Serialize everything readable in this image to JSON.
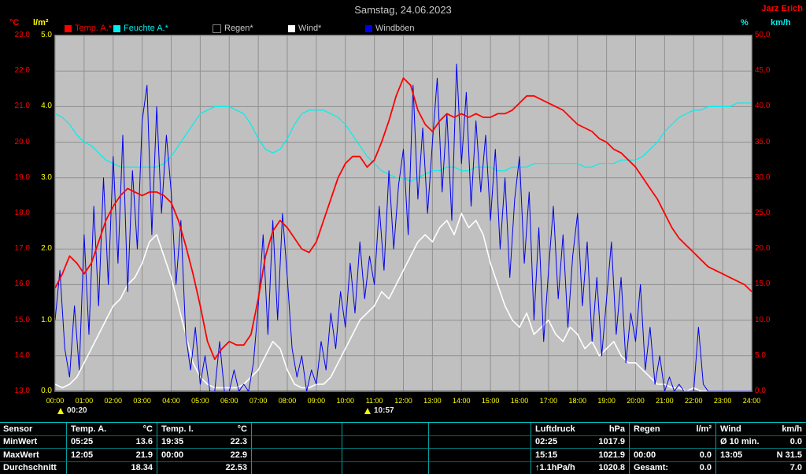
{
  "header": {
    "title": "Samstag, 24.06.2023",
    "station": "Jarz Erich"
  },
  "axis_labels": {
    "temp": "°C",
    "rain": "l/m²",
    "humidity": "%",
    "wind": "km/h"
  },
  "legend": {
    "items": [
      {
        "label": "Temp. A.*",
        "color": "#ff0000",
        "text_color": "#ff0000"
      },
      {
        "label": "Feuchte A.*",
        "color": "#00eeee",
        "text_color": "#00eeee"
      },
      {
        "label": "Regen*",
        "color": "#000000",
        "text_color": "#c8c8c8",
        "border_color": "#808080"
      },
      {
        "label": "Wind*",
        "color": "#ffffff",
        "text_color": "#c8c8c8"
      },
      {
        "label": "Windböen",
        "color": "#0000ee",
        "text_color": "#c8c8c8"
      }
    ]
  },
  "chart_data": {
    "type": "line",
    "title": "Samstag, 24.06.2023",
    "x_ticks": [
      "00:00",
      "01:00",
      "02:00",
      "03:00",
      "04:00",
      "05:00",
      "06:00",
      "07:00",
      "08:00",
      "09:00",
      "10:00",
      "11:00",
      "12:00",
      "13:00",
      "14:00",
      "15:00",
      "16:00",
      "17:00",
      "18:00",
      "19:00",
      "20:00",
      "21:00",
      "22:00",
      "23:00",
      "24:00"
    ],
    "y_axis_left_temp": {
      "unit": "°C",
      "color": "#ff0000",
      "range": [
        13,
        23
      ],
      "ticks": [
        "23.0",
        "22.0",
        "21.0",
        "20.0",
        "19.0",
        "18.0",
        "17.0",
        "16.0",
        "15.0",
        "14.0",
        "13.0"
      ]
    },
    "y_axis_left_rain": {
      "unit": "l/m²",
      "color": "#ffff00",
      "range": [
        0,
        5
      ],
      "ticks": [
        "5.0",
        "4.0",
        "3.0",
        "2.0",
        "1.0",
        "0.0"
      ]
    },
    "y_axis_right_wind": {
      "unit": "km/h",
      "color": "#ff0000",
      "range": [
        0,
        50
      ],
      "ticks": [
        "50.0",
        "45.0",
        "40.0",
        "35.0",
        "30.0",
        "25.0",
        "20.0",
        "15.0",
        "10.0",
        "5.0",
        "0.0"
      ]
    },
    "humidity_axis": {
      "unit": "%",
      "color": "#00eeee",
      "range": [
        0,
        100
      ]
    },
    "grid": true,
    "series": [
      {
        "name": "Temp. A.",
        "axis": "temp",
        "color": "#ff0000",
        "interval_minutes": 15,
        "values": [
          15.9,
          16.3,
          16.8,
          16.6,
          16.3,
          16.6,
          17.2,
          17.8,
          18.2,
          18.5,
          18.7,
          18.6,
          18.5,
          18.6,
          18.6,
          18.5,
          18.3,
          17.8,
          17.1,
          16.3,
          15.4,
          14.4,
          13.9,
          14.2,
          14.4,
          14.3,
          14.3,
          14.6,
          15.6,
          16.8,
          17.5,
          17.8,
          17.6,
          17.3,
          17.0,
          16.9,
          17.2,
          17.8,
          18.4,
          19.0,
          19.4,
          19.6,
          19.6,
          19.3,
          19.5,
          20.0,
          20.6,
          21.3,
          21.8,
          21.6,
          20.9,
          20.5,
          20.3,
          20.6,
          20.8,
          20.7,
          20.8,
          20.7,
          20.8,
          20.7,
          20.7,
          20.8,
          20.8,
          20.9,
          21.1,
          21.3,
          21.3,
          21.2,
          21.1,
          21.0,
          20.9,
          20.7,
          20.5,
          20.4,
          20.3,
          20.1,
          20.0,
          19.8,
          19.7,
          19.5,
          19.3,
          19.0,
          18.7,
          18.4,
          18.0,
          17.6,
          17.3,
          17.1,
          16.9,
          16.7,
          16.5,
          16.4,
          16.3,
          16.2,
          16.1,
          16.0,
          15.8
        ]
      },
      {
        "name": "Feuchte A.",
        "axis": "humidity",
        "color": "#00eeee",
        "interval_minutes": 15,
        "values": [
          78,
          77,
          75,
          72,
          70,
          69,
          67,
          65,
          64,
          63,
          63,
          63,
          63,
          63,
          63,
          64,
          66,
          69,
          72,
          75,
          78,
          79,
          80,
          80,
          80,
          79,
          78,
          75,
          71,
          68,
          67,
          68,
          71,
          75,
          78,
          79,
          79,
          79,
          78,
          77,
          75,
          72,
          69,
          66,
          64,
          62,
          61,
          60,
          60,
          59,
          60,
          61,
          62,
          62,
          63,
          63,
          62,
          62,
          63,
          63,
          63,
          62,
          62,
          63,
          63,
          63,
          64,
          64,
          64,
          64,
          64,
          64,
          64,
          63,
          63,
          64,
          64,
          64,
          65,
          65,
          65,
          66,
          68,
          70,
          73,
          75,
          77,
          78,
          79,
          79,
          80,
          80,
          80,
          80,
          81,
          81,
          81
        ]
      },
      {
        "name": "Regen",
        "axis": "rain",
        "color": "#000000",
        "interval_minutes": 60,
        "values": [
          0,
          0,
          0,
          0,
          0,
          0,
          0,
          0,
          0,
          0,
          0,
          0,
          0,
          0,
          0,
          0,
          0,
          0,
          0,
          0,
          0,
          0,
          0,
          0,
          0
        ]
      },
      {
        "name": "Wind",
        "axis": "wind",
        "color": "#ffffff",
        "interval_minutes": 15,
        "values": [
          1,
          0.5,
          1,
          2,
          4,
          6,
          8,
          10,
          12,
          13,
          15,
          16,
          18,
          21,
          22,
          19,
          16,
          12,
          8,
          4,
          2,
          1,
          0.5,
          0.5,
          0.5,
          0.5,
          1,
          2,
          3,
          5,
          7,
          6,
          3,
          1,
          0.5,
          0.5,
          1,
          1,
          2,
          4,
          6,
          8,
          10,
          11,
          12,
          14,
          13,
          15,
          17,
          19,
          21,
          22,
          21,
          23,
          24,
          22,
          25,
          23,
          24,
          22,
          18,
          15,
          12,
          10,
          9,
          11,
          8,
          9,
          10,
          8,
          7,
          9,
          8,
          6,
          7,
          5,
          6,
          7,
          5,
          4,
          4,
          3,
          2,
          1,
          1,
          0.5,
          0.5,
          0,
          0.5,
          0,
          0,
          0,
          0,
          0,
          0,
          0,
          0
        ]
      },
      {
        "name": "Windböen",
        "axis": "wind",
        "color": "#0000ee",
        "interval_minutes": 10,
        "values": [
          10,
          17,
          6,
          2,
          12,
          3,
          22,
          8,
          26,
          12,
          30,
          15,
          33,
          18,
          36,
          14,
          31,
          20,
          38,
          43,
          22,
          40,
          25,
          36,
          28,
          15,
          24,
          8,
          3,
          9,
          1,
          5,
          0,
          0,
          7,
          0,
          0,
          3,
          0,
          1,
          0,
          4,
          12,
          22,
          8,
          24,
          10,
          25,
          16,
          6,
          2,
          5,
          0,
          3,
          1,
          7,
          3,
          11,
          6,
          14,
          9,
          18,
          11,
          21,
          13,
          19,
          15,
          26,
          17,
          31,
          20,
          29,
          34,
          22,
          43,
          27,
          37,
          25,
          35,
          44,
          28,
          39,
          24,
          46,
          32,
          42,
          26,
          38,
          28,
          36,
          24,
          34,
          20,
          30,
          16,
          27,
          33,
          18,
          28,
          10,
          23,
          7,
          17,
          26,
          13,
          22,
          9,
          19,
          25,
          12,
          21,
          7,
          16,
          5,
          13,
          21,
          8,
          16,
          4,
          11,
          7,
          15,
          3,
          9,
          1,
          5,
          0,
          2,
          0,
          1,
          0,
          0,
          0,
          9,
          1,
          0,
          0,
          0,
          0,
          0,
          0,
          0,
          0,
          0,
          0
        ]
      }
    ]
  },
  "markers": [
    {
      "time": "00:20"
    },
    {
      "time": "10:57"
    }
  ],
  "stats_table": {
    "row_labels": [
      "Sensor",
      "MinWert",
      "MaxWert",
      "Durchschnitt"
    ],
    "columns": [
      {
        "header": "Temp. A.",
        "unit": "°C",
        "rows": [
          [
            "05:25",
            "13.6"
          ],
          [
            "12:05",
            "21.9"
          ],
          [
            "",
            "18.34"
          ]
        ]
      },
      {
        "header": "Temp. I.",
        "unit": "°C",
        "rows": [
          [
            "19:35",
            "22.3"
          ],
          [
            "00:00",
            "22.9"
          ],
          [
            "",
            "22.53"
          ]
        ]
      },
      {
        "header": "",
        "unit": "",
        "rows": [
          [
            "",
            ""
          ],
          [
            "",
            ""
          ],
          [
            "",
            ""
          ]
        ]
      },
      {
        "header": "",
        "unit": "",
        "rows": [
          [
            "",
            ""
          ],
          [
            "",
            ""
          ],
          [
            "",
            ""
          ]
        ]
      },
      {
        "header": "",
        "unit": "",
        "rows": [
          [
            "",
            ""
          ],
          [
            "",
            ""
          ],
          [
            "",
            ""
          ]
        ]
      },
      {
        "header": "Luftdruck",
        "unit": "hPa",
        "rows": [
          [
            "02:25",
            "1017.9"
          ],
          [
            "15:15",
            "1021.9"
          ],
          [
            "↑1.1hPa/h",
            "1020.8"
          ]
        ]
      },
      {
        "header": "Regen",
        "unit": "l/m²",
        "rows": [
          [
            "",
            ""
          ],
          [
            "00:00",
            "0.0"
          ],
          [
            "Gesamt:",
            "0.0"
          ]
        ]
      },
      {
        "header": "Wind",
        "unit": "km/h",
        "rows": [
          [
            "Ø 10 min.",
            "0.0"
          ],
          [
            "13:05",
            "N 31.5"
          ],
          [
            "",
            "7.0"
          ]
        ]
      }
    ]
  }
}
